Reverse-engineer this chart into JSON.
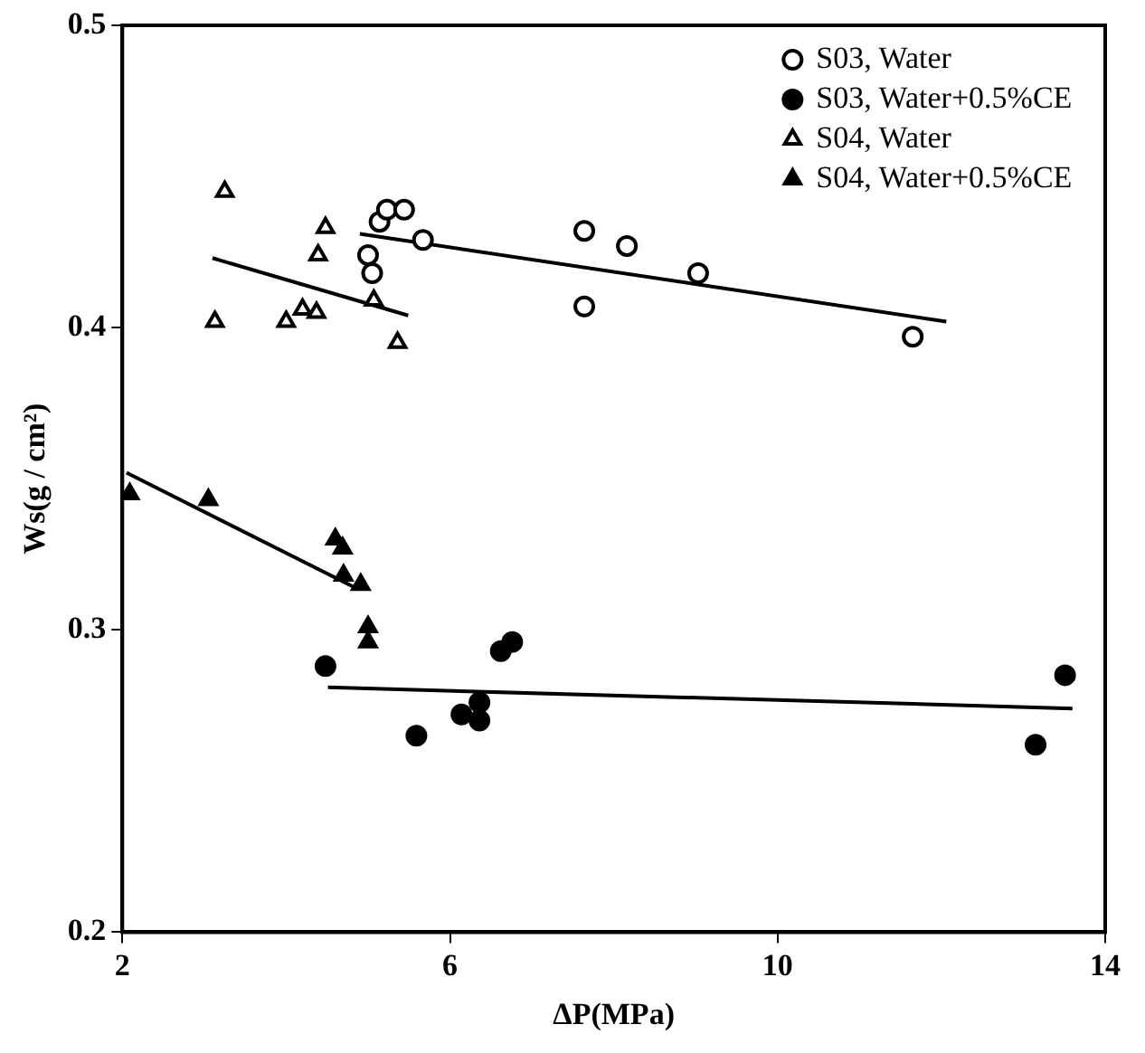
{
  "chart_data": {
    "type": "scatter",
    "xlabel": "ΔP(MPa)",
    "ylabel": "Ws(g / cm²)",
    "xlim": [
      2,
      14
    ],
    "xticks": [
      2,
      6,
      10,
      14
    ],
    "ylim": [
      0.2,
      0.5
    ],
    "yticks": [
      0.2,
      0.3,
      0.4,
      0.5
    ],
    "grid": false,
    "legend": "top right",
    "series": [
      {
        "name": "S03, Water",
        "marker": "circle-open",
        "color": "#000000",
        "x": [
          5.0,
          5.05,
          5.14,
          5.23,
          5.44,
          5.67,
          7.64,
          7.64,
          8.16,
          9.03,
          11.65
        ],
        "values": [
          0.424,
          0.418,
          0.435,
          0.439,
          0.439,
          0.429,
          0.432,
          0.407,
          0.427,
          0.418,
          0.397
        ]
      },
      {
        "name": "S03, Water+0.5%CE",
        "marker": "circle",
        "color": "#000000",
        "x": [
          4.48,
          5.59,
          6.14,
          6.36,
          6.36,
          6.62,
          6.76,
          13.15,
          13.51
        ],
        "values": [
          0.288,
          0.265,
          0.272,
          0.276,
          0.27,
          0.293,
          0.296,
          0.262,
          0.285
        ]
      },
      {
        "name": "S04, Water",
        "marker": "triangle-open",
        "color": "#000000",
        "x": [
          3.25,
          3.13,
          4.0,
          4.2,
          4.37,
          4.39,
          4.48,
          5.07,
          5.36
        ],
        "values": [
          0.445,
          0.402,
          0.402,
          0.406,
          0.405,
          0.424,
          0.433,
          0.409,
          0.395
        ]
      },
      {
        "name": "S04, Water+0.5%CE",
        "marker": "triangle",
        "color": "#000000",
        "x": [
          2.09,
          3.05,
          4.6,
          4.69,
          4.7,
          4.91,
          5.0,
          5.0
        ],
        "values": [
          0.345,
          0.343,
          0.33,
          0.327,
          0.318,
          0.315,
          0.301,
          0.296
        ]
      },
      {
        "type": "line",
        "marker": "none",
        "color": "#000000",
        "x": [
          4.9,
          12.06
        ],
        "values": [
          0.431,
          0.402
        ]
      },
      {
        "type": "line",
        "marker": "none",
        "color": "#000000",
        "x": [
          3.1,
          5.49
        ],
        "values": [
          0.423,
          0.404
        ]
      },
      {
        "type": "line",
        "marker": "none",
        "color": "#000000",
        "x": [
          2.05,
          4.84
        ],
        "values": [
          0.352,
          0.314
        ]
      },
      {
        "type": "line",
        "marker": "none",
        "color": "#000000",
        "x": [
          4.51,
          13.6
        ],
        "values": [
          0.281,
          0.274
        ]
      }
    ]
  }
}
